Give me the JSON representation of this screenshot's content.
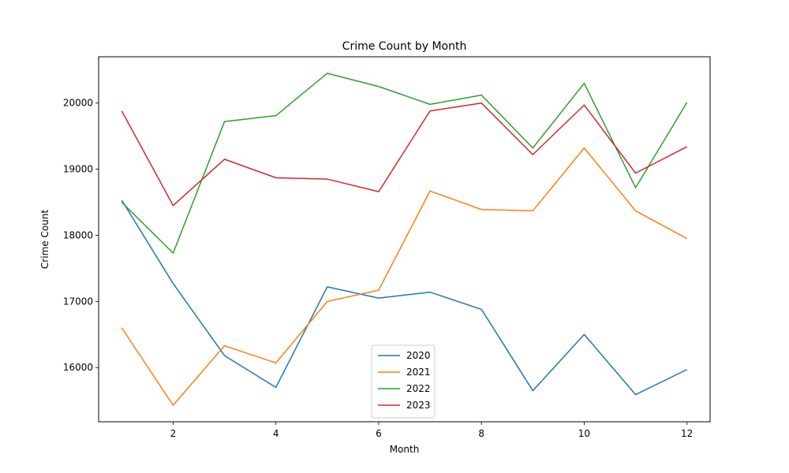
{
  "chart_data": {
    "type": "line",
    "title": "Crime Count by Month",
    "xlabel": "Month",
    "ylabel": "Crime Count",
    "x": [
      1,
      2,
      3,
      4,
      5,
      6,
      7,
      8,
      9,
      10,
      11,
      12
    ],
    "xlim": [
      0.55,
      12.45
    ],
    "ylim": [
      15180,
      20700
    ],
    "xticks": [
      2,
      4,
      6,
      8,
      10,
      12
    ],
    "yticks": [
      16000,
      17000,
      18000,
      19000,
      20000
    ],
    "grid": false,
    "legend_position": "lower-center",
    "series": [
      {
        "name": "2020",
        "color": "#1f77b4",
        "values": [
          18530,
          17270,
          16180,
          15700,
          17220,
          17050,
          17140,
          16880,
          15650,
          16500,
          15590,
          15970
        ]
      },
      {
        "name": "2021",
        "color": "#ff7f0e",
        "values": [
          16600,
          15430,
          16330,
          16070,
          17000,
          17170,
          18670,
          18390,
          18370,
          19320,
          18370,
          17950
        ]
      },
      {
        "name": "2022",
        "color": "#2ca02c",
        "values": [
          18500,
          17730,
          19720,
          19810,
          20450,
          20250,
          19980,
          20120,
          19320,
          20300,
          18720,
          20010
        ]
      },
      {
        "name": "2023",
        "color": "#d62728",
        "values": [
          19880,
          18450,
          19150,
          18870,
          18850,
          18660,
          19880,
          20000,
          19220,
          19970,
          18940,
          19340
        ]
      }
    ]
  }
}
